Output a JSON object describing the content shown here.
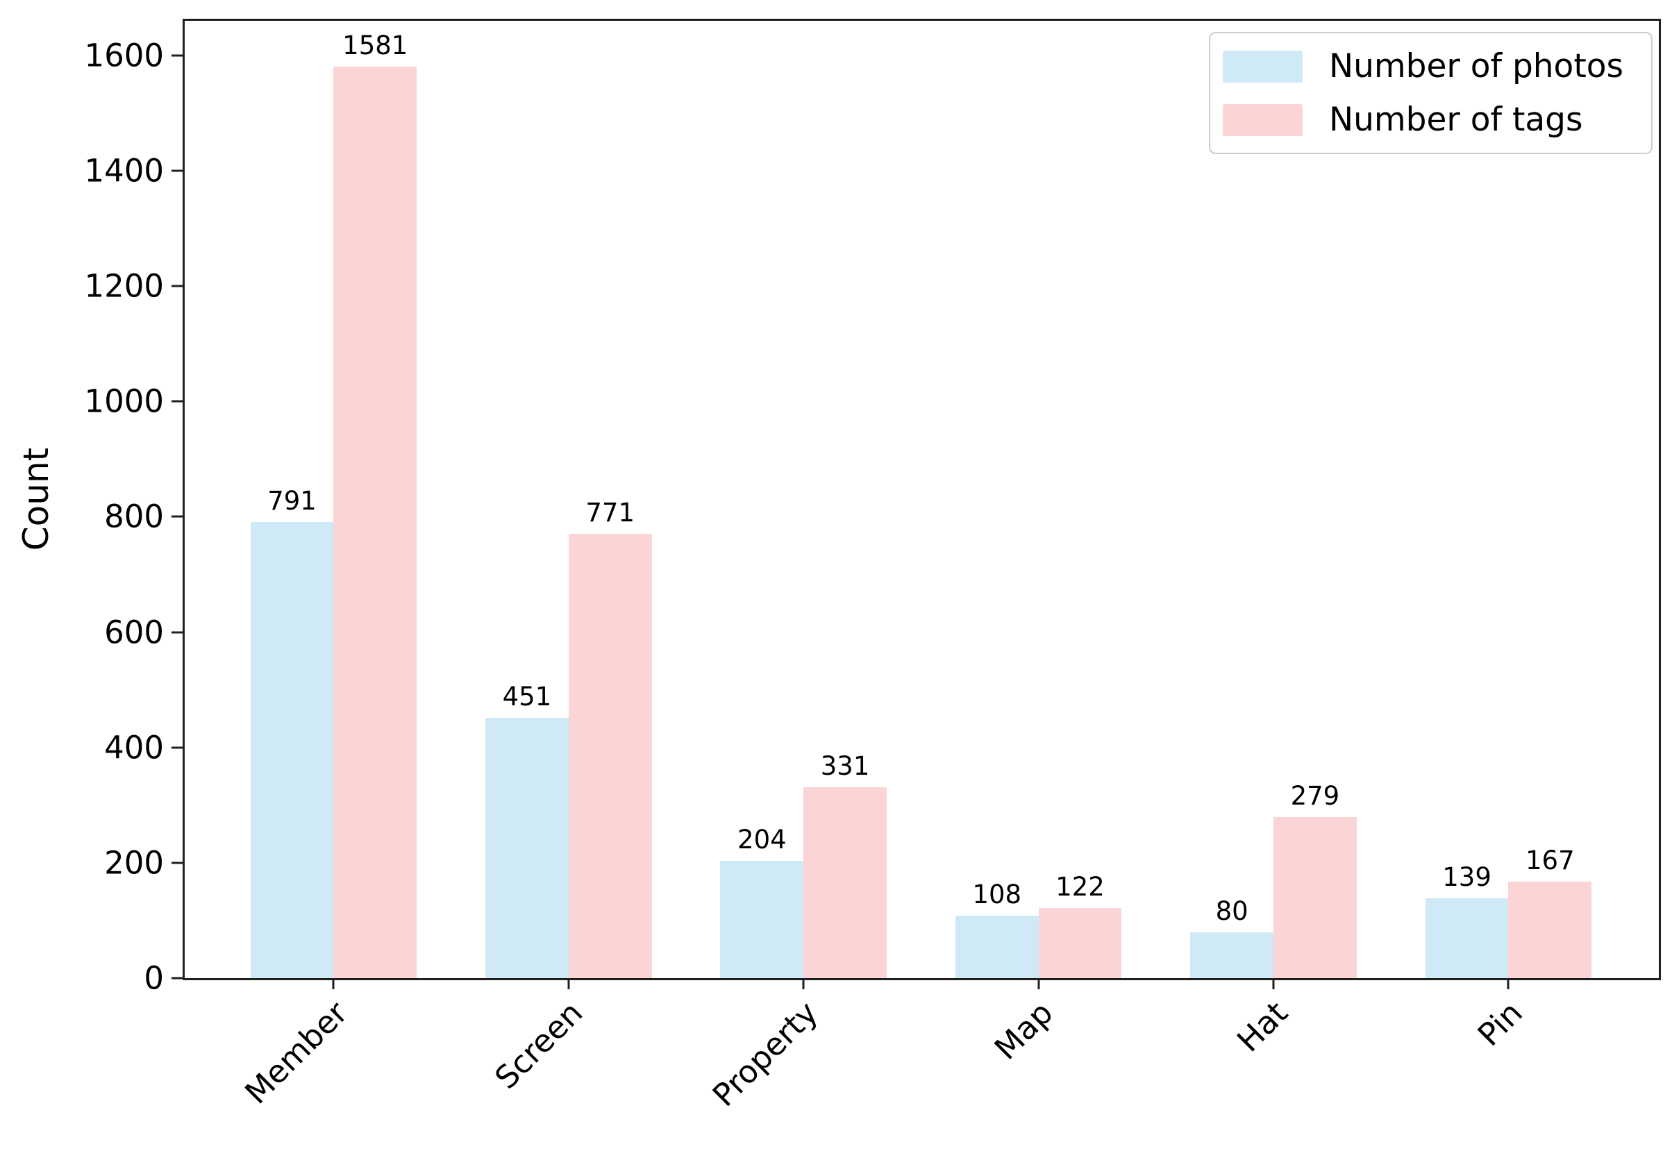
{
  "chart_data": {
    "type": "bar",
    "title": "",
    "xlabel": "",
    "ylabel": "Count",
    "categories": [
      "Member",
      "Screen",
      "Property",
      "Map",
      "Hat",
      "Pin"
    ],
    "series": [
      {
        "name": "Number of photos",
        "color": "#CFE9F7",
        "values": [
          791,
          451,
          204,
          108,
          80,
          139
        ]
      },
      {
        "name": "Number of tags",
        "color": "#FBD5D6",
        "values": [
          1581,
          771,
          331,
          122,
          279,
          167
        ]
      }
    ],
    "bar_value_labels": [
      [
        "791",
        "451",
        "204",
        "108",
        "80",
        "139"
      ],
      [
        "1581",
        "771",
        "331",
        "122",
        "279",
        "167"
      ]
    ],
    "yticks": [
      "0",
      "200",
      "400",
      "600",
      "800",
      "1000",
      "1200",
      "1400",
      "1600"
    ],
    "ylim": [
      0,
      1660
    ],
    "grid": false,
    "legend_position": "upper right",
    "axis_color": "#1f1f1f",
    "background_color": "#ffffff"
  }
}
